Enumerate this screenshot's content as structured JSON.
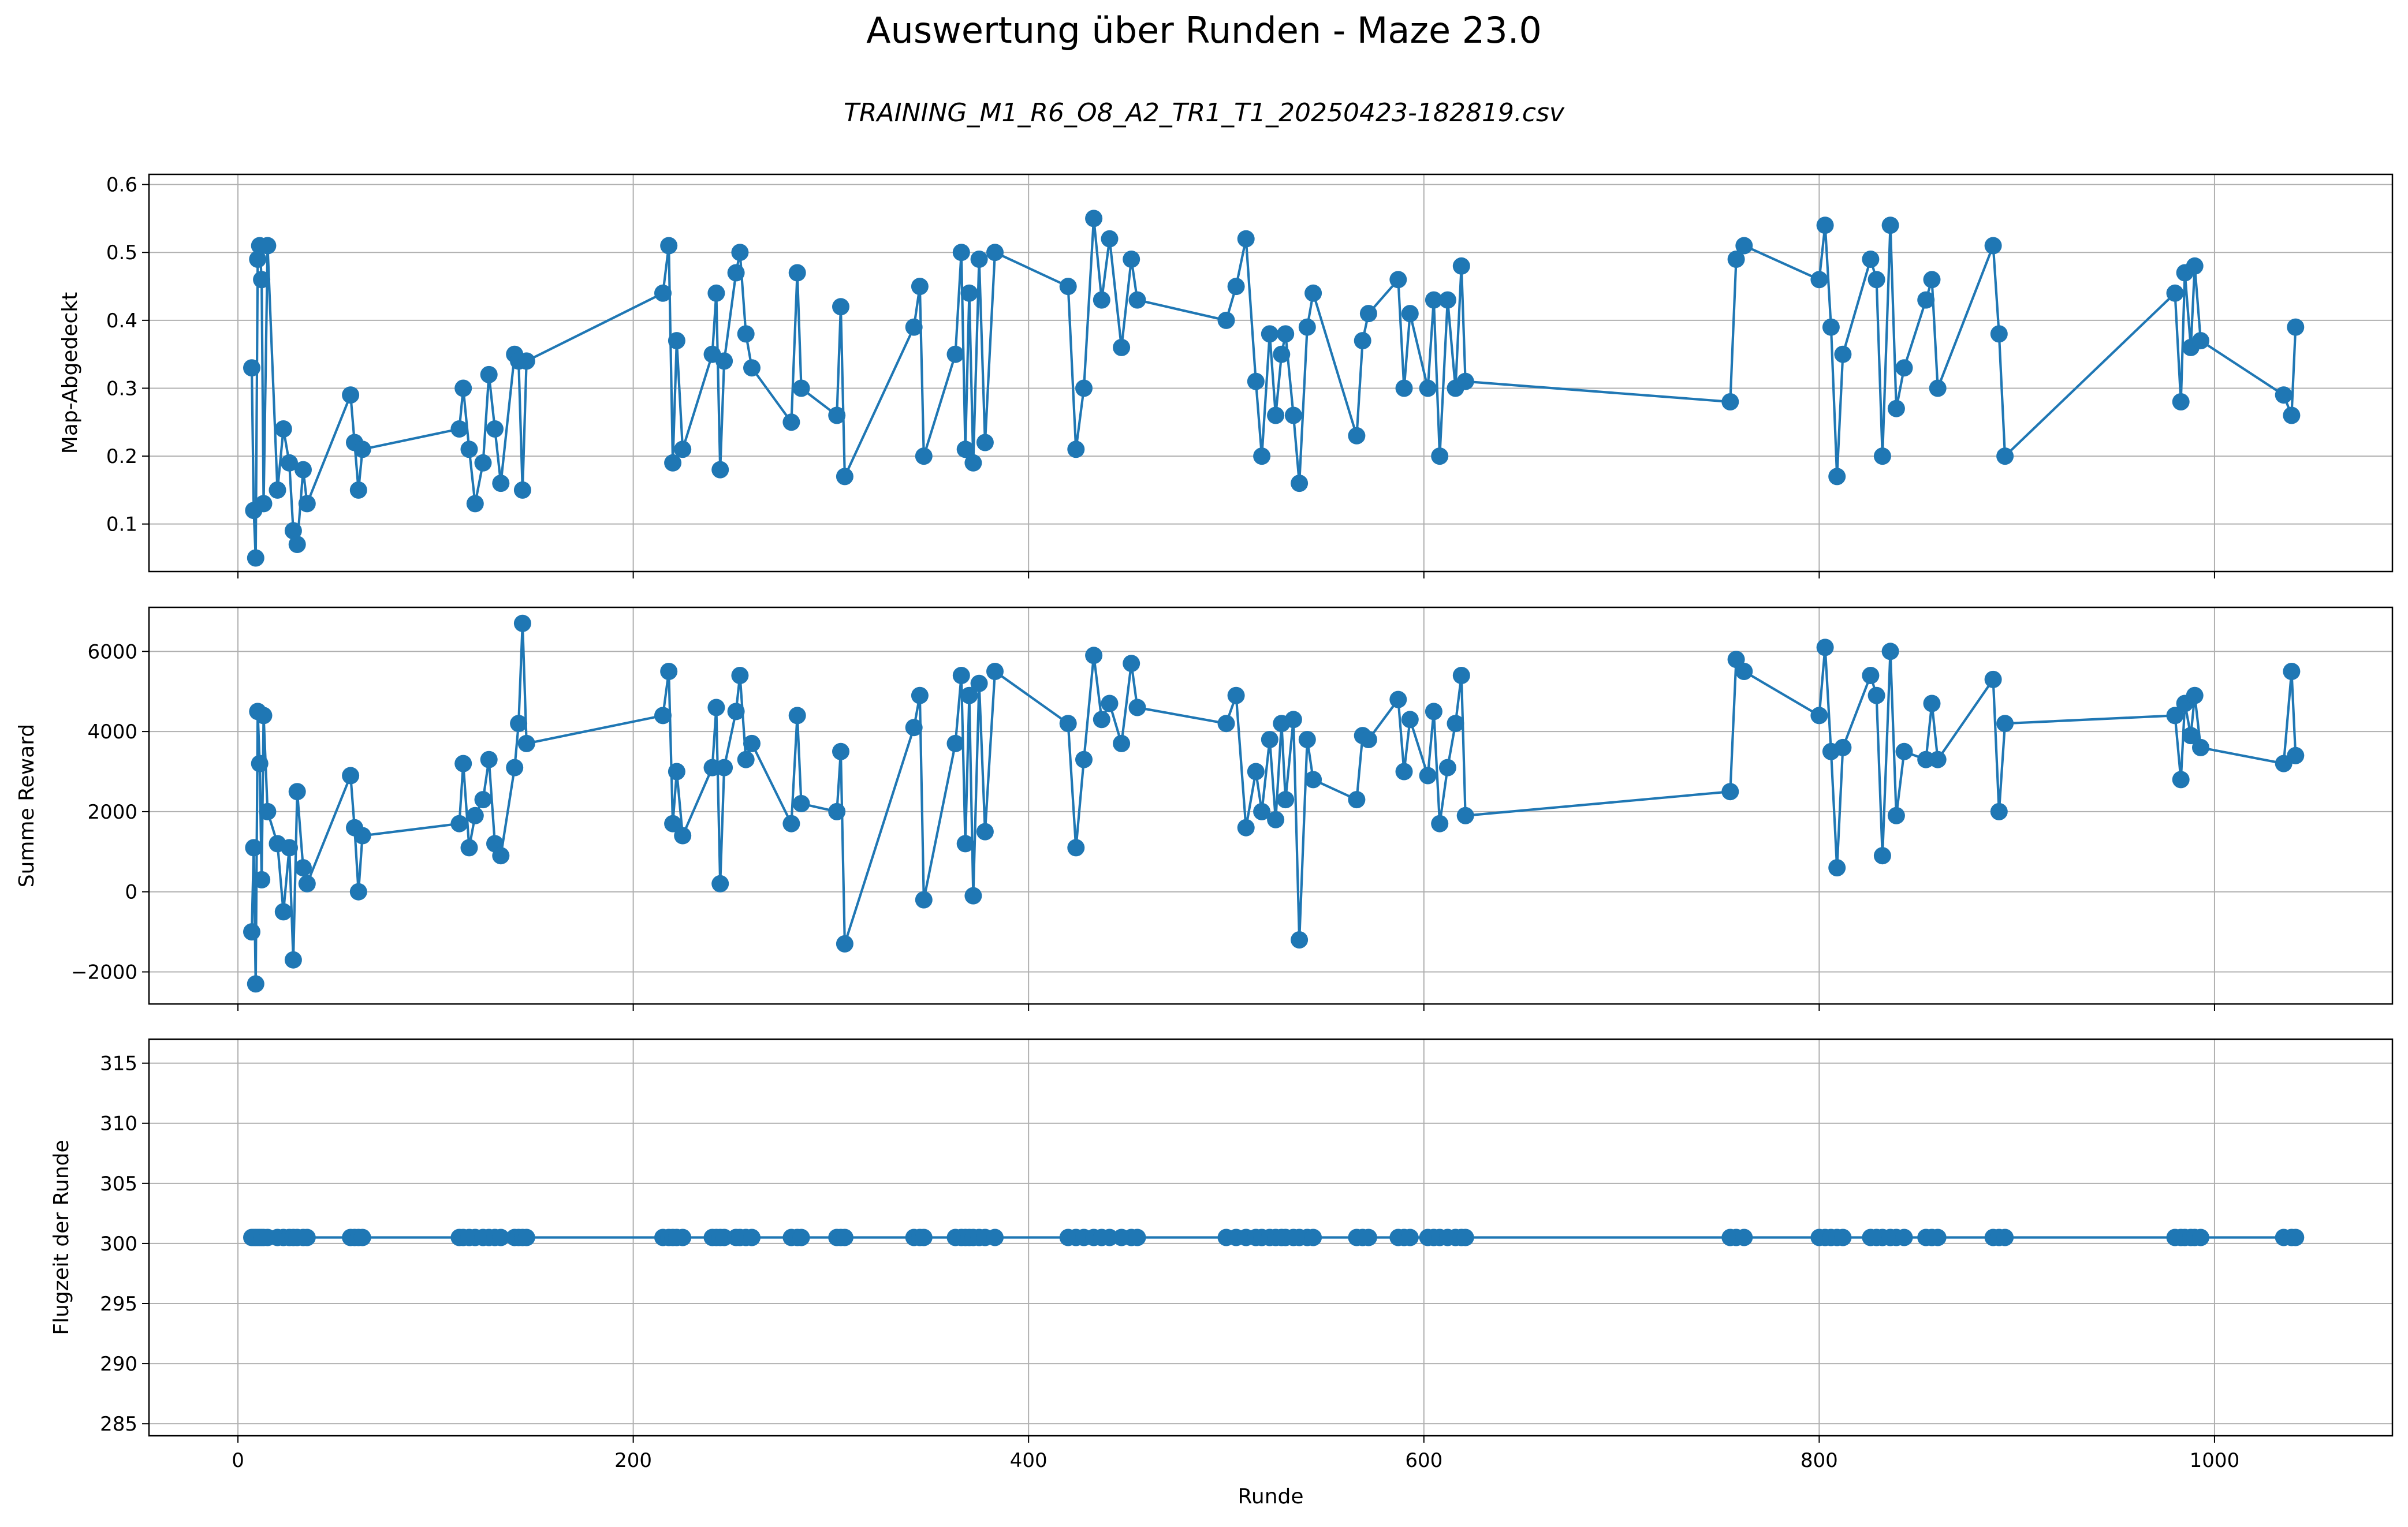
{
  "figure": {
    "title": "Auswertung über Runden - Maze 23.0",
    "subtitle": "TRAINING_M1_R6_O8_A2_TR1_T1_20250423-182819.csv",
    "series_color": "#1f77b4"
  },
  "chart_data": [
    {
      "type": "line",
      "marker": "circle",
      "ylabel": "Map-Abgedeckt",
      "xlabel": "",
      "xlim": [
        -45,
        1090
      ],
      "ylim": [
        0.03,
        0.615
      ],
      "xticks": [
        0,
        200,
        400,
        600,
        800,
        1000
      ],
      "yticks": [
        0.1,
        0.2,
        0.3,
        0.4,
        0.5,
        0.6
      ],
      "ytick_labels": [
        "0.1",
        "0.2",
        "0.3",
        "0.4",
        "0.5",
        "0.6"
      ],
      "grid": true,
      "x": [
        7,
        8,
        9,
        10,
        11,
        12,
        13,
        15,
        20,
        23,
        26,
        28,
        30,
        33,
        35,
        57,
        59,
        61,
        63,
        112,
        114,
        117,
        120,
        124,
        127,
        130,
        133,
        140,
        142,
        144,
        146,
        215,
        218,
        220,
        222,
        225,
        240,
        242,
        244,
        246,
        252,
        254,
        257,
        260,
        280,
        283,
        285,
        303,
        305,
        307,
        342,
        345,
        347,
        363,
        366,
        368,
        370,
        372,
        375,
        378,
        383,
        420,
        424,
        428,
        433,
        437,
        441,
        447,
        452,
        455,
        500,
        505,
        510,
        515,
        518,
        522,
        525,
        528,
        530,
        534,
        537,
        541,
        544,
        566,
        569,
        572,
        587,
        590,
        593,
        602,
        605,
        608,
        612,
        616,
        619,
        621,
        755,
        758,
        762,
        800,
        803,
        806,
        809,
        812,
        826,
        829,
        832,
        836,
        839,
        843,
        854,
        857,
        860,
        888,
        891,
        894,
        980,
        983,
        985,
        988,
        990,
        993,
        1035,
        1039,
        1041
      ],
      "y": [
        0.33,
        0.12,
        0.05,
        0.49,
        0.51,
        0.46,
        0.13,
        0.51,
        0.15,
        0.24,
        0.19,
        0.09,
        0.07,
        0.18,
        0.13,
        0.29,
        0.22,
        0.15,
        0.21,
        0.24,
        0.3,
        0.21,
        0.13,
        0.19,
        0.32,
        0.24,
        0.16,
        0.35,
        0.34,
        0.15,
        0.34,
        0.44,
        0.51,
        0.19,
        0.37,
        0.21,
        0.35,
        0.44,
        0.18,
        0.34,
        0.47,
        0.5,
        0.38,
        0.33,
        0.25,
        0.47,
        0.3,
        0.26,
        0.42,
        0.17,
        0.39,
        0.45,
        0.2,
        0.35,
        0.5,
        0.21,
        0.44,
        0.19,
        0.49,
        0.22,
        0.5,
        0.45,
        0.21,
        0.3,
        0.55,
        0.43,
        0.52,
        0.36,
        0.49,
        0.43,
        0.4,
        0.45,
        0.52,
        0.31,
        0.2,
        0.38,
        0.26,
        0.35,
        0.38,
        0.26,
        0.16,
        0.39,
        0.44,
        0.23,
        0.37,
        0.41,
        0.46,
        0.3,
        0.41,
        0.3,
        0.43,
        0.2,
        0.43,
        0.3,
        0.48,
        0.31,
        0.28,
        0.49,
        0.51,
        0.46,
        0.54,
        0.39,
        0.17,
        0.35,
        0.49,
        0.46,
        0.2,
        0.54,
        0.27,
        0.33,
        0.43,
        0.46,
        0.3,
        0.51,
        0.38,
        0.2,
        0.44,
        0.28,
        0.47,
        0.36,
        0.48,
        0.37,
        0.29,
        0.26,
        0.39
      ]
    },
    {
      "type": "line",
      "marker": "circle",
      "ylabel": "Summe Reward",
      "xlabel": "",
      "xlim": [
        -45,
        1090
      ],
      "ylim": [
        -2800,
        7100
      ],
      "xticks": [
        0,
        200,
        400,
        600,
        800,
        1000
      ],
      "yticks": [
        -2000,
        0,
        2000,
        4000,
        6000
      ],
      "ytick_labels": [
        "−2000",
        "0",
        "2000",
        "4000",
        "6000"
      ],
      "grid": true,
      "x": [
        7,
        8,
        9,
        10,
        11,
        12,
        13,
        15,
        20,
        23,
        26,
        28,
        30,
        33,
        35,
        57,
        59,
        61,
        63,
        112,
        114,
        117,
        120,
        124,
        127,
        130,
        133,
        140,
        142,
        144,
        146,
        215,
        218,
        220,
        222,
        225,
        240,
        242,
        244,
        246,
        252,
        254,
        257,
        260,
        280,
        283,
        285,
        303,
        305,
        307,
        342,
        345,
        347,
        363,
        366,
        368,
        370,
        372,
        375,
        378,
        383,
        420,
        424,
        428,
        433,
        437,
        441,
        447,
        452,
        455,
        500,
        505,
        510,
        515,
        518,
        522,
        525,
        528,
        530,
        534,
        537,
        541,
        544,
        566,
        569,
        572,
        587,
        590,
        593,
        602,
        605,
        608,
        612,
        616,
        619,
        621,
        755,
        758,
        762,
        800,
        803,
        806,
        809,
        812,
        826,
        829,
        832,
        836,
        839,
        843,
        854,
        857,
        860,
        888,
        891,
        894,
        980,
        983,
        985,
        988,
        990,
        993,
        1035,
        1039,
        1041
      ],
      "y": [
        -1000,
        1100,
        -2300,
        4500,
        3200,
        300,
        4400,
        2000,
        1200,
        -500,
        1100,
        -1700,
        2500,
        600,
        200,
        2900,
        1600,
        0,
        1400,
        1700,
        3200,
        1100,
        1900,
        2300,
        3300,
        1200,
        900,
        3100,
        4200,
        6700,
        3700,
        4400,
        5500,
        1700,
        3000,
        1400,
        3100,
        4600,
        200,
        3100,
        4500,
        5400,
        3300,
        3700,
        1700,
        4400,
        2200,
        2000,
        3500,
        -1300,
        4100,
        4900,
        -200,
        3700,
        5400,
        1200,
        4900,
        -100,
        5200,
        1500,
        5500,
        4200,
        1100,
        3300,
        5900,
        4300,
        4700,
        3700,
        5700,
        4600,
        4200,
        4900,
        1600,
        3000,
        2000,
        3800,
        1800,
        4200,
        2300,
        4300,
        -1200,
        3800,
        2800,
        2300,
        3900,
        3800,
        4800,
        3000,
        4300,
        2900,
        4500,
        1700,
        3100,
        4200,
        5400,
        1900,
        2500,
        5800,
        5500,
        4400,
        6100,
        3500,
        600,
        3600,
        5400,
        4900,
        900,
        6000,
        1900,
        3500,
        3300,
        4700,
        3300,
        5300,
        2000,
        4200,
        4400,
        2800,
        4700,
        3900,
        4900,
        3600,
        3200,
        5500,
        3400
      ]
    },
    {
      "type": "line",
      "marker": "circle",
      "ylabel": "Flugzeit der Runde",
      "xlabel": "Runde",
      "xlim": [
        -45,
        1090
      ],
      "ylim": [
        284,
        317
      ],
      "xticks": [
        0,
        200,
        400,
        600,
        800,
        1000
      ],
      "xtick_labels": [
        "0",
        "200",
        "400",
        "600",
        "800",
        "1000"
      ],
      "yticks": [
        285,
        290,
        295,
        300,
        305,
        310,
        315
      ],
      "ytick_labels": [
        "285",
        "290",
        "295",
        "300",
        "305",
        "310",
        "315"
      ],
      "grid": true,
      "x": [
        7,
        8,
        9,
        10,
        11,
        12,
        13,
        15,
        20,
        23,
        26,
        28,
        30,
        33,
        35,
        57,
        59,
        61,
        63,
        112,
        114,
        117,
        120,
        124,
        127,
        130,
        133,
        140,
        142,
        144,
        146,
        215,
        218,
        220,
        222,
        225,
        240,
        242,
        244,
        246,
        252,
        254,
        257,
        260,
        280,
        283,
        285,
        303,
        305,
        307,
        342,
        345,
        347,
        363,
        366,
        368,
        370,
        372,
        375,
        378,
        383,
        420,
        424,
        428,
        433,
        437,
        441,
        447,
        452,
        455,
        500,
        505,
        510,
        515,
        518,
        522,
        525,
        528,
        530,
        534,
        537,
        541,
        544,
        566,
        569,
        572,
        587,
        590,
        593,
        602,
        605,
        608,
        612,
        616,
        619,
        621,
        755,
        758,
        762,
        800,
        803,
        806,
        809,
        812,
        826,
        829,
        832,
        836,
        839,
        843,
        854,
        857,
        860,
        888,
        891,
        894,
        980,
        983,
        985,
        988,
        990,
        993,
        1035,
        1039,
        1041
      ],
      "y": [
        300.5,
        300.5,
        300.5,
        300.5,
        300.5,
        300.5,
        300.5,
        300.5,
        300.5,
        300.5,
        300.5,
        300.5,
        300.5,
        300.5,
        300.5,
        300.5,
        300.5,
        300.5,
        300.5,
        300.5,
        300.5,
        300.5,
        300.5,
        300.5,
        300.5,
        300.5,
        300.5,
        300.5,
        300.5,
        300.5,
        300.5,
        300.5,
        300.5,
        300.5,
        300.5,
        300.5,
        300.5,
        300.5,
        300.5,
        300.5,
        300.5,
        300.5,
        300.5,
        300.5,
        300.5,
        300.5,
        300.5,
        300.5,
        300.5,
        300.5,
        300.5,
        300.5,
        300.5,
        300.5,
        300.5,
        300.5,
        300.5,
        300.5,
        300.5,
        300.5,
        300.5,
        300.5,
        300.5,
        300.5,
        300.5,
        300.5,
        300.5,
        300.5,
        300.5,
        300.5,
        300.5,
        300.5,
        300.5,
        300.5,
        300.5,
        300.5,
        300.5,
        300.5,
        300.5,
        300.5,
        300.5,
        300.5,
        300.5,
        300.5,
        300.5,
        300.5,
        300.5,
        300.5,
        300.5,
        300.5,
        300.5,
        300.5,
        300.5,
        300.5,
        300.5,
        300.5,
        300.5,
        300.5,
        300.5,
        300.5,
        300.5,
        300.5,
        300.5,
        300.5,
        300.5,
        300.5,
        300.5,
        300.5,
        300.5,
        300.5,
        300.5,
        300.5,
        300.5,
        300.5,
        300.5,
        300.5,
        300.5,
        300.5,
        300.5,
        300.5,
        300.5,
        300.5,
        300.5,
        300.5,
        300.5
      ]
    }
  ]
}
